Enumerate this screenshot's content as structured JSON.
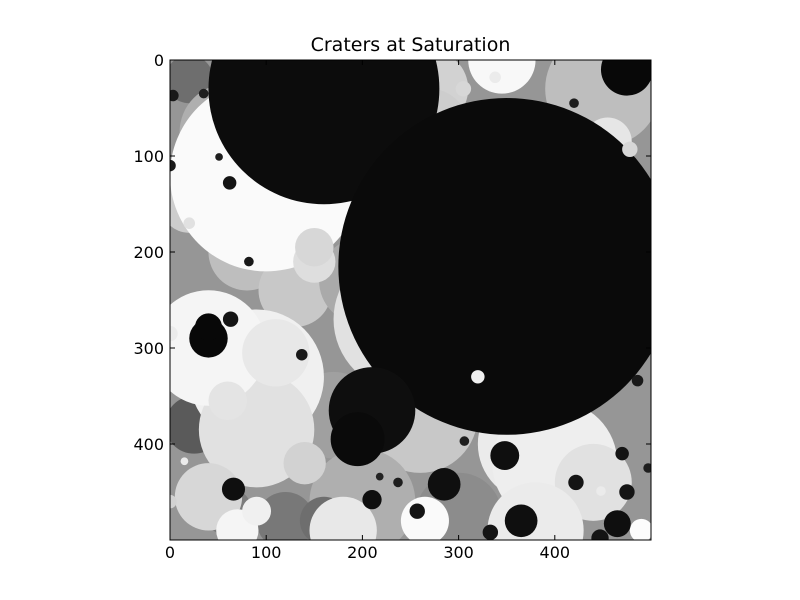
{
  "chart_data": {
    "type": "heatmap",
    "title": "Craters at Saturation",
    "xlabel": "",
    "ylabel": "",
    "xlim": [
      0,
      500
    ],
    "ylim": [
      500,
      0
    ],
    "x_ticks": [
      0,
      100,
      200,
      300,
      400
    ],
    "y_ticks": [
      0,
      100,
      200,
      300,
      400
    ],
    "colormap": "gray",
    "grid": false,
    "background_gray": 150,
    "craters": [
      {
        "x": 20,
        "y": 20,
        "r": 25,
        "gray": 110
      },
      {
        "x": 60,
        "y": 75,
        "r": 50,
        "gray": 175
      },
      {
        "x": 20,
        "y": 150,
        "r": 30,
        "gray": 205
      },
      {
        "x": 80,
        "y": 200,
        "r": 40,
        "gray": 190
      },
      {
        "x": 130,
        "y": 240,
        "r": 38,
        "gray": 200
      },
      {
        "x": 200,
        "y": 230,
        "r": 45,
        "gray": 170
      },
      {
        "x": 90,
        "y": 360,
        "r": 40,
        "gray": 140
      },
      {
        "x": 170,
        "y": 370,
        "r": 45,
        "gray": 160
      },
      {
        "x": 25,
        "y": 380,
        "r": 30,
        "gray": 90
      },
      {
        "x": 260,
        "y": 370,
        "r": 60,
        "gray": 200
      },
      {
        "x": 300,
        "y": 330,
        "r": 45,
        "gray": 185
      },
      {
        "x": 200,
        "y": 460,
        "r": 55,
        "gray": 175
      },
      {
        "x": 300,
        "y": 475,
        "r": 45,
        "gray": 140
      },
      {
        "x": 120,
        "y": 480,
        "r": 30,
        "gray": 120
      },
      {
        "x": 160,
        "y": 480,
        "r": 25,
        "gray": 110
      },
      {
        "x": 60,
        "y": 470,
        "r": 25,
        "gray": 125
      },
      {
        "x": 450,
        "y": 30,
        "r": 60,
        "gray": 190
      },
      {
        "x": 470,
        "y": 180,
        "r": 40,
        "gray": 170
      },
      {
        "x": 480,
        "y": 250,
        "r": 30,
        "gray": 120
      },
      {
        "x": 270,
        "y": 30,
        "r": 40,
        "gray": 210
      },
      {
        "x": 100,
        "y": 120,
        "r": 100,
        "gray": 250
      },
      {
        "x": 245,
        "y": 270,
        "r": 75,
        "gray": 225
      },
      {
        "x": 90,
        "y": 330,
        "r": 70,
        "gray": 240
      },
      {
        "x": 90,
        "y": 385,
        "r": 60,
        "gray": 225
      },
      {
        "x": 40,
        "y": 300,
        "r": 60,
        "gray": 245
      },
      {
        "x": 110,
        "y": 305,
        "r": 35,
        "gray": 232
      },
      {
        "x": 60,
        "y": 355,
        "r": 20,
        "gray": 228
      },
      {
        "x": 230,
        "y": 225,
        "r": 25,
        "gray": 238
      },
      {
        "x": 150,
        "y": 210,
        "r": 22,
        "gray": 222
      },
      {
        "x": 140,
        "y": 420,
        "r": 22,
        "gray": 210
      },
      {
        "x": 380,
        "y": 400,
        "r": 60,
        "gray": 235
      },
      {
        "x": 400,
        "y": 420,
        "r": 65,
        "gray": 238
      },
      {
        "x": 440,
        "y": 440,
        "r": 40,
        "gray": 225
      },
      {
        "x": 380,
        "y": 490,
        "r": 50,
        "gray": 235
      },
      {
        "x": 180,
        "y": 490,
        "r": 35,
        "gray": 232
      },
      {
        "x": 40,
        "y": 455,
        "r": 35,
        "gray": 215
      },
      {
        "x": 345,
        "y": 0,
        "r": 35,
        "gray": 248
      },
      {
        "x": 270,
        "y": 70,
        "r": 40,
        "gray": 205
      },
      {
        "x": 265,
        "y": 480,
        "r": 25,
        "gray": 250
      },
      {
        "x": 70,
        "y": 490,
        "r": 22,
        "gray": 245
      },
      {
        "x": 90,
        "y": 470,
        "r": 15,
        "gray": 240
      },
      {
        "x": 150,
        "y": 195,
        "r": 20,
        "gray": 215
      },
      {
        "x": 490,
        "y": 490,
        "r": 12,
        "gray": 252
      },
      {
        "x": 455,
        "y": 85,
        "r": 25,
        "gray": 230
      },
      {
        "x": 160,
        "y": 30,
        "r": 120,
        "gray": 12
      },
      {
        "x": 350,
        "y": 215,
        "r": 175,
        "gray": 10
      },
      {
        "x": 210,
        "y": 365,
        "r": 45,
        "gray": 14
      },
      {
        "x": 195,
        "y": 395,
        "r": 28,
        "gray": 10
      },
      {
        "x": 475,
        "y": 10,
        "r": 27,
        "gray": 8
      },
      {
        "x": 40,
        "y": 290,
        "r": 20,
        "gray": 8
      },
      {
        "x": 40,
        "y": 278,
        "r": 14,
        "gray": 8
      },
      {
        "x": 365,
        "y": 480,
        "r": 17,
        "gray": 15
      },
      {
        "x": 285,
        "y": 442,
        "r": 17,
        "gray": 15
      },
      {
        "x": 348,
        "y": 412,
        "r": 15,
        "gray": 15
      },
      {
        "x": 465,
        "y": 483,
        "r": 14,
        "gray": 15
      },
      {
        "x": 66,
        "y": 447,
        "r": 12,
        "gray": 15
      },
      {
        "x": 210,
        "y": 458,
        "r": 10,
        "gray": 15
      },
      {
        "x": 422,
        "y": 440,
        "r": 8,
        "gray": 20
      },
      {
        "x": 475,
        "y": 450,
        "r": 8,
        "gray": 20
      },
      {
        "x": 470,
        "y": 410,
        "r": 7,
        "gray": 20
      },
      {
        "x": 257,
        "y": 470,
        "r": 8,
        "gray": 20
      },
      {
        "x": 333,
        "y": 492,
        "r": 8,
        "gray": 20
      },
      {
        "x": 447,
        "y": 498,
        "r": 9,
        "gray": 20
      },
      {
        "x": 63,
        "y": 270,
        "r": 8,
        "gray": 20
      },
      {
        "x": 62,
        "y": 128,
        "r": 7,
        "gray": 20
      },
      {
        "x": 137,
        "y": 307,
        "r": 6,
        "gray": 25
      },
      {
        "x": 486,
        "y": 334,
        "r": 6,
        "gray": 25
      },
      {
        "x": 0,
        "y": 110,
        "r": 6,
        "gray": 25
      },
      {
        "x": 3,
        "y": 37,
        "r": 6,
        "gray": 25
      },
      {
        "x": 82,
        "y": 210,
        "r": 5,
        "gray": 25
      },
      {
        "x": 51,
        "y": 101,
        "r": 4,
        "gray": 30
      },
      {
        "x": 35,
        "y": 35,
        "r": 5,
        "gray": 30
      },
      {
        "x": 420,
        "y": 45,
        "r": 5,
        "gray": 30
      },
      {
        "x": 306,
        "y": 397,
        "r": 5,
        "gray": 30
      },
      {
        "x": 237,
        "y": 440,
        "r": 5,
        "gray": 30
      },
      {
        "x": 218,
        "y": 434,
        "r": 4,
        "gray": 35
      },
      {
        "x": 497,
        "y": 425,
        "r": 5,
        "gray": 30
      },
      {
        "x": 320,
        "y": 330,
        "r": 7,
        "gray": 240
      },
      {
        "x": 338,
        "y": 18,
        "r": 6,
        "gray": 235
      },
      {
        "x": 305,
        "y": 30,
        "r": 8,
        "gray": 215
      },
      {
        "x": 20,
        "y": 170,
        "r": 6,
        "gray": 225
      },
      {
        "x": 0,
        "y": 285,
        "r": 8,
        "gray": 235
      },
      {
        "x": 0,
        "y": 460,
        "r": 7,
        "gray": 210
      },
      {
        "x": 478,
        "y": 93,
        "r": 8,
        "gray": 215
      },
      {
        "x": 15,
        "y": 418,
        "r": 4,
        "gray": 235
      },
      {
        "x": 448,
        "y": 449,
        "r": 5,
        "gray": 235
      }
    ]
  }
}
